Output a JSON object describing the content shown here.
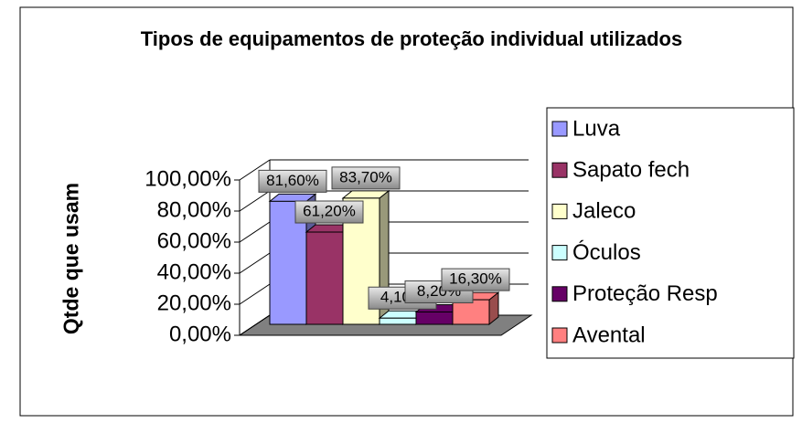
{
  "chart_data": {
    "type": "bar3d",
    "title": "Tipos de equipamentos de proteção individual utilizados",
    "y_label": "Qtde que usam",
    "categories": [
      null
    ],
    "series": [
      {
        "name": "Luva",
        "color": "#9999ff",
        "values": [
          81.6
        ],
        "value_labels": [
          "81,60%"
        ]
      },
      {
        "name": "Sapato fech",
        "color": "#993366",
        "values": [
          61.2
        ],
        "value_labels": [
          "61,20%"
        ]
      },
      {
        "name": "Jaleco",
        "color": "#ffffcc",
        "values": [
          83.7
        ],
        "value_labels": [
          "83,70%"
        ]
      },
      {
        "name": "Óculos",
        "color": "#ccffff",
        "values": [
          4.1
        ],
        "value_labels": [
          "4,10%"
        ]
      },
      {
        "name": "Proteção Resp",
        "color": "#660066",
        "values": [
          8.2
        ],
        "value_labels": [
          "8,20%"
        ]
      },
      {
        "name": "Avental",
        "color": "#ff8080",
        "values": [
          16.3
        ],
        "value_labels": [
          "16,30%"
        ]
      }
    ],
    "ylim": [
      0,
      100
    ],
    "yticks": [
      {
        "value": 0,
        "label": "0,00%"
      },
      {
        "value": 20,
        "label": "20,00%"
      },
      {
        "value": 40,
        "label": "40,00%"
      },
      {
        "value": 60,
        "label": "60,00%"
      },
      {
        "value": 80,
        "label": "80,00%"
      },
      {
        "value": 100,
        "label": "100,00%"
      }
    ],
    "grid": true,
    "legend": "right"
  }
}
